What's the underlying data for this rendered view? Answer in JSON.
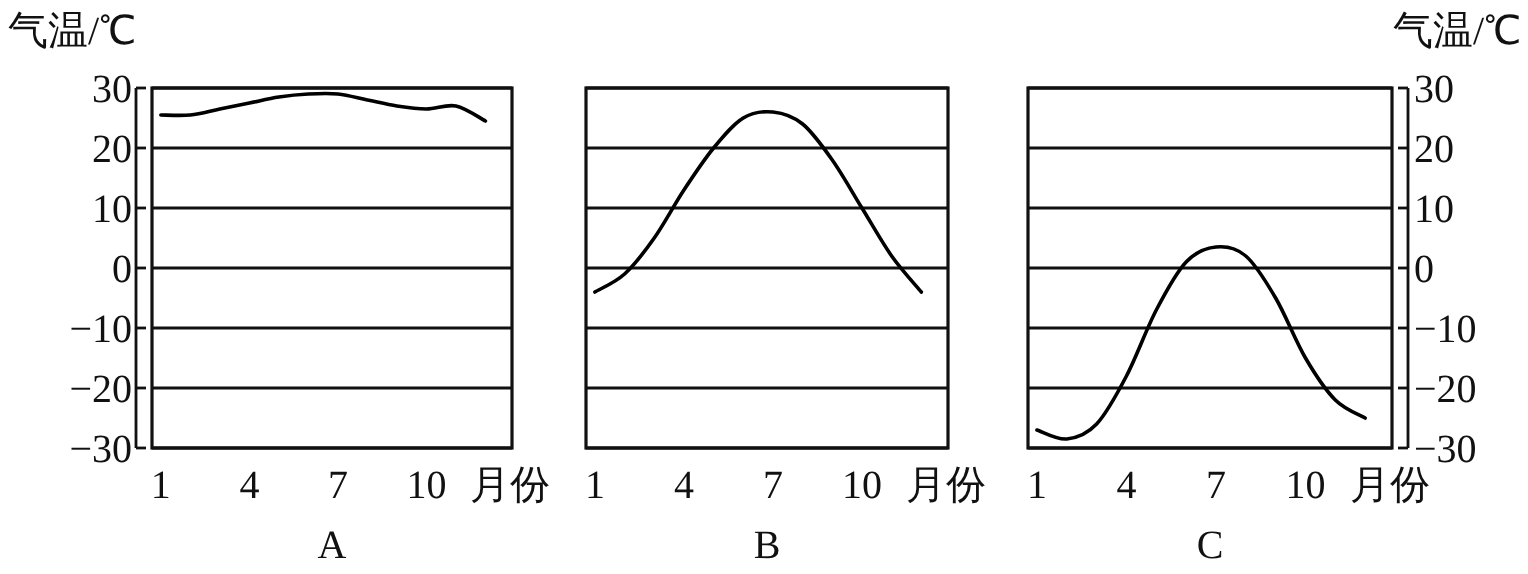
{
  "chart_data": [
    {
      "type": "line",
      "title": "A",
      "ylabel": "气温/℃",
      "xlabel": "月份",
      "x": [
        1,
        2,
        3,
        4,
        5,
        6,
        7,
        8,
        9,
        10,
        11,
        12
      ],
      "xlim": [
        0.7,
        12.9
      ],
      "xticks": [
        1,
        4,
        7,
        10
      ],
      "ylim": [
        -30,
        30
      ],
      "yticks": [
        -30,
        -20,
        -10,
        0,
        10,
        20,
        30
      ],
      "grid": "y",
      "series": [
        {
          "color": "#000000",
          "values": [
            25.5,
            25.5,
            26.5,
            27.5,
            28.5,
            29,
            29,
            28,
            27,
            26.5,
            27,
            24.5
          ]
        }
      ]
    },
    {
      "type": "line",
      "title": "B",
      "xlabel": "月份",
      "x": [
        1,
        2,
        3,
        4,
        5,
        6,
        7,
        8,
        9,
        10,
        11,
        12
      ],
      "xlim": [
        0.7,
        12.9
      ],
      "xticks": [
        1,
        4,
        7,
        10
      ],
      "ylim": [
        -30,
        30
      ],
      "yticks": [
        -30,
        -20,
        -10,
        0,
        10,
        20,
        30
      ],
      "grid": "y",
      "tick_labels": "x",
      "series": [
        {
          "color": "#000000",
          "values": [
            -4,
            -1,
            5,
            13,
            20,
            25,
            26,
            24,
            18,
            10,
            2,
            -4
          ]
        }
      ]
    },
    {
      "type": "line",
      "title": "C",
      "y2label": "气温/℃",
      "xlabel": "月份",
      "x": [
        1,
        2,
        3,
        4,
        5,
        6,
        7,
        8,
        9,
        10,
        11,
        12
      ],
      "xlim": [
        0.7,
        12.9
      ],
      "xticks": [
        1,
        4,
        7,
        10
      ],
      "y2lim": [
        -30,
        30
      ],
      "y2ticks": [
        -30,
        -20,
        -10,
        0,
        10,
        20,
        30
      ],
      "grid": "y",
      "series": [
        {
          "color": "#000000",
          "axis": "y2",
          "values": [
            -27,
            -28.5,
            -26,
            -18,
            -7,
            1,
            3.5,
            2,
            -5,
            -15,
            -22,
            -25
          ]
        }
      ]
    }
  ]
}
